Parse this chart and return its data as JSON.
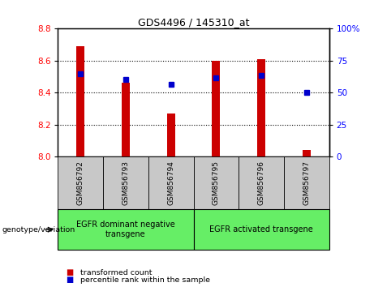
{
  "title": "GDS4496 / 145310_at",
  "samples": [
    "GSM856792",
    "GSM856793",
    "GSM856794",
    "GSM856795",
    "GSM856796",
    "GSM856797"
  ],
  "red_values": [
    8.69,
    8.46,
    8.27,
    8.6,
    8.61,
    8.04
  ],
  "blue_values": [
    8.52,
    8.48,
    8.45,
    8.49,
    8.51,
    8.4
  ],
  "y_min": 8.0,
  "y_max": 8.8,
  "y_ticks": [
    8.0,
    8.2,
    8.4,
    8.6,
    8.8
  ],
  "right_y_ticks": [
    0,
    25,
    50,
    75,
    100
  ],
  "right_y_labels": [
    "0",
    "25",
    "50",
    "75",
    "100%"
  ],
  "groups": [
    {
      "label": "EGFR dominant negative\ntransgene",
      "samples": [
        0,
        1,
        2
      ],
      "color": "#66ee66"
    },
    {
      "label": "EGFR activated transgene",
      "samples": [
        3,
        4,
        5
      ],
      "color": "#66ee66"
    }
  ],
  "genotype_label": "genotype/variation",
  "legend_red_label": "transformed count",
  "legend_blue_label": "percentile rank within the sample",
  "bar_color": "#cc0000",
  "dot_color": "#0000cc",
  "bg_color": "#c8c8c8",
  "plot_bg": "#ffffff",
  "bar_width": 0.18
}
